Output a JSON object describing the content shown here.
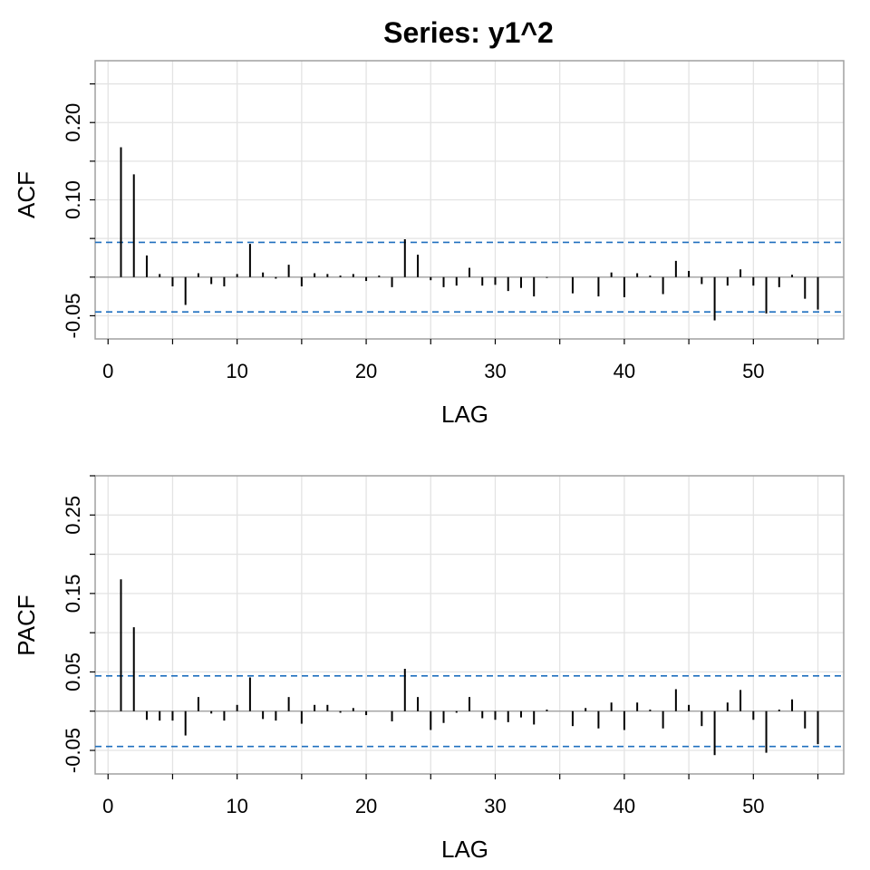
{
  "title": "Series:  y1^2",
  "colors": {
    "background": "#ffffff",
    "grid": "#e3e3e3",
    "frame": "#a0a0a0",
    "bars": "#000000",
    "bounds": "#1f6fbf"
  },
  "chart_data": [
    {
      "type": "bar",
      "name": "ACF",
      "xlabel": "LAG",
      "ylabel": "ACF",
      "xlim": [
        -1,
        57
      ],
      "ylim": [
        -0.08,
        0.28
      ],
      "x_ticks": [
        0,
        10,
        20,
        30,
        40,
        50
      ],
      "y_ticks": [
        "-0.05",
        "0.10",
        "0.20"
      ],
      "y_tick_values": [
        -0.05,
        0.1,
        0.2
      ],
      "conf_bound": 0.045,
      "grid": true,
      "lags": [
        1,
        2,
        3,
        4,
        5,
        6,
        7,
        8,
        9,
        10,
        11,
        12,
        13,
        14,
        15,
        16,
        17,
        18,
        19,
        20,
        21,
        22,
        23,
        24,
        25,
        26,
        27,
        28,
        29,
        30,
        31,
        32,
        33,
        34,
        35,
        36,
        37,
        38,
        39,
        40,
        41,
        42,
        43,
        44,
        45,
        46,
        47,
        48,
        49,
        50,
        51,
        52,
        53,
        54,
        55
      ],
      "values": [
        0.168,
        0.133,
        0.028,
        0.004,
        -0.012,
        -0.036,
        0.005,
        -0.009,
        -0.012,
        0.004,
        0.043,
        0.006,
        -0.002,
        0.016,
        -0.012,
        0.005,
        0.004,
        0.002,
        0.004,
        -0.005,
        0.002,
        -0.013,
        0.049,
        0.029,
        -0.004,
        -0.013,
        -0.011,
        0.012,
        -0.011,
        -0.01,
        -0.018,
        -0.014,
        -0.025,
        -0.001,
        0.0,
        -0.021,
        0.0,
        -0.025,
        0.006,
        -0.026,
        0.005,
        0.002,
        -0.022,
        0.021,
        0.008,
        -0.009,
        -0.056,
        -0.011,
        0.01,
        -0.011,
        -0.047,
        -0.013,
        0.003,
        -0.028,
        -0.042
      ]
    },
    {
      "type": "bar",
      "name": "PACF",
      "xlabel": "LAG",
      "ylabel": "PACF",
      "xlim": [
        -1,
        57
      ],
      "ylim": [
        -0.08,
        0.3
      ],
      "x_ticks": [
        0,
        10,
        20,
        30,
        40,
        50
      ],
      "y_ticks": [
        "-0.05",
        "0.05",
        "0.15",
        "0.25"
      ],
      "y_tick_values": [
        -0.05,
        0.05,
        0.15,
        0.25
      ],
      "conf_bound": 0.045,
      "grid": true,
      "lags": [
        1,
        2,
        3,
        4,
        5,
        6,
        7,
        8,
        9,
        10,
        11,
        12,
        13,
        14,
        15,
        16,
        17,
        18,
        19,
        20,
        21,
        22,
        23,
        24,
        25,
        26,
        27,
        28,
        29,
        30,
        31,
        32,
        33,
        34,
        35,
        36,
        37,
        38,
        39,
        40,
        41,
        42,
        43,
        44,
        45,
        46,
        47,
        48,
        49,
        50,
        51,
        52,
        53,
        54,
        55
      ],
      "values": [
        0.168,
        0.107,
        -0.011,
        -0.012,
        -0.012,
        -0.031,
        0.018,
        -0.003,
        -0.012,
        0.008,
        0.043,
        -0.01,
        -0.012,
        0.018,
        -0.016,
        0.008,
        0.008,
        -0.002,
        0.004,
        -0.005,
        0.0,
        -0.013,
        0.054,
        0.018,
        -0.024,
        -0.015,
        -0.002,
        0.018,
        -0.009,
        -0.011,
        -0.014,
        -0.008,
        -0.017,
        0.002,
        0.0,
        -0.019,
        0.004,
        -0.022,
        0.011,
        -0.024,
        0.011,
        0.002,
        -0.022,
        0.028,
        0.008,
        -0.019,
        -0.056,
        0.011,
        0.027,
        -0.011,
        -0.053,
        0.002,
        0.015,
        -0.022,
        -0.042
      ]
    }
  ]
}
